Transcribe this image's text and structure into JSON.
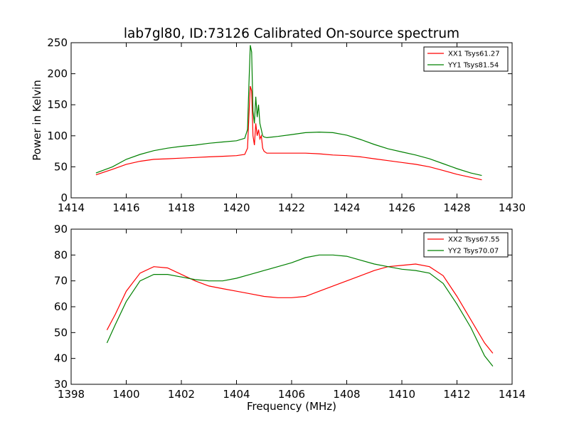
{
  "title": "lab7gl80, ID:73126 Calibrated On-source spectrum",
  "chart_data": [
    {
      "type": "line",
      "ylabel": "Power in Kelvin",
      "xlabel": "",
      "xlim": [
        1414,
        1430
      ],
      "ylim": [
        0,
        250
      ],
      "xticks": [
        1414,
        1416,
        1418,
        1420,
        1422,
        1424,
        1426,
        1428,
        1430
      ],
      "yticks": [
        0,
        50,
        100,
        150,
        200,
        250
      ],
      "legend_position": "top-right",
      "series": [
        {
          "name": "XX1 Tsys61.27",
          "color": "#ff0000",
          "x": [
            1414.9,
            1415.5,
            1416,
            1416.5,
            1417,
            1417.5,
            1418,
            1418.5,
            1419,
            1419.5,
            1420,
            1420.3,
            1420.4,
            1420.45,
            1420.5,
            1420.55,
            1420.6,
            1420.65,
            1420.7,
            1420.75,
            1420.8,
            1420.85,
            1420.9,
            1420.95,
            1421.0,
            1421.1,
            1421.5,
            1422,
            1422.5,
            1423,
            1423.5,
            1424,
            1424.5,
            1425,
            1425.5,
            1426,
            1426.5,
            1427,
            1427.5,
            1428,
            1428.5,
            1428.9
          ],
          "y": [
            37,
            46,
            54,
            59,
            62,
            63,
            64,
            65,
            66,
            67,
            68,
            70,
            80,
            130,
            180,
            172,
            100,
            85,
            120,
            100,
            110,
            95,
            100,
            80,
            75,
            72,
            72,
            72,
            72,
            71,
            69,
            68,
            66,
            63,
            60,
            57,
            54,
            50,
            44,
            38,
            33,
            29
          ]
        },
        {
          "name": "YY1 Tsys81.54",
          "color": "#008000",
          "x": [
            1414.9,
            1415.5,
            1416,
            1416.5,
            1417,
            1417.5,
            1418,
            1418.5,
            1419,
            1419.5,
            1420,
            1420.3,
            1420.4,
            1420.45,
            1420.5,
            1420.55,
            1420.6,
            1420.65,
            1420.7,
            1420.75,
            1420.8,
            1420.85,
            1420.9,
            1420.95,
            1421.0,
            1421.1,
            1421.5,
            1422,
            1422.5,
            1423,
            1423.5,
            1424,
            1424.5,
            1425,
            1425.5,
            1426,
            1426.5,
            1427,
            1427.5,
            1428,
            1428.5,
            1428.9
          ],
          "y": [
            40,
            50,
            62,
            70,
            76,
            80,
            83,
            85,
            88,
            90,
            92,
            96,
            110,
            180,
            246,
            235,
            140,
            120,
            163,
            130,
            150,
            120,
            110,
            100,
            98,
            97,
            99,
            102,
            105,
            106,
            105,
            101,
            94,
            86,
            79,
            74,
            69,
            63,
            55,
            47,
            40,
            36
          ]
        }
      ]
    },
    {
      "type": "line",
      "ylabel": "",
      "xlabel": "Frequency (MHz)",
      "xlim": [
        1398,
        1414
      ],
      "ylim": [
        30,
        90
      ],
      "xticks": [
        1398,
        1400,
        1402,
        1404,
        1406,
        1408,
        1410,
        1412,
        1414
      ],
      "yticks": [
        30,
        40,
        50,
        60,
        70,
        80,
        90
      ],
      "legend_position": "top-right",
      "series": [
        {
          "name": "XX2 Tsys67.55",
          "color": "#ff0000",
          "x": [
            1399.3,
            1399.6,
            1400,
            1400.5,
            1401,
            1401.5,
            1402,
            1402.5,
            1403,
            1403.5,
            1404,
            1404.5,
            1405,
            1405.5,
            1406,
            1406.5,
            1407,
            1407.5,
            1408,
            1408.5,
            1409,
            1409.5,
            1410,
            1410.5,
            1411,
            1411.5,
            1412,
            1412.5,
            1413,
            1413.3
          ],
          "y": [
            51,
            57,
            66,
            73,
            75.5,
            75,
            72.5,
            70,
            68,
            67,
            66,
            65,
            64,
            63.5,
            63.5,
            64,
            66,
            68,
            70,
            72,
            74,
            75.5,
            76,
            76.5,
            75.5,
            72,
            64,
            55,
            46,
            42
          ]
        },
        {
          "name": "YY2 Tsys70.07",
          "color": "#008000",
          "x": [
            1399.3,
            1399.6,
            1400,
            1400.5,
            1401,
            1401.5,
            1402,
            1402.5,
            1403,
            1403.5,
            1404,
            1404.5,
            1405,
            1405.5,
            1406,
            1406.5,
            1407,
            1407.5,
            1408,
            1408.5,
            1409,
            1409.5,
            1410,
            1410.5,
            1411,
            1411.5,
            1412,
            1412.5,
            1413,
            1413.3
          ],
          "y": [
            46,
            53,
            62,
            70,
            72.5,
            72.5,
            71.5,
            70.5,
            70,
            70,
            71,
            72.5,
            74,
            75.5,
            77,
            79,
            80,
            80,
            79.5,
            78,
            76.5,
            75.5,
            74.5,
            74,
            73,
            69,
            61,
            52,
            41,
            37
          ]
        }
      ]
    }
  ]
}
